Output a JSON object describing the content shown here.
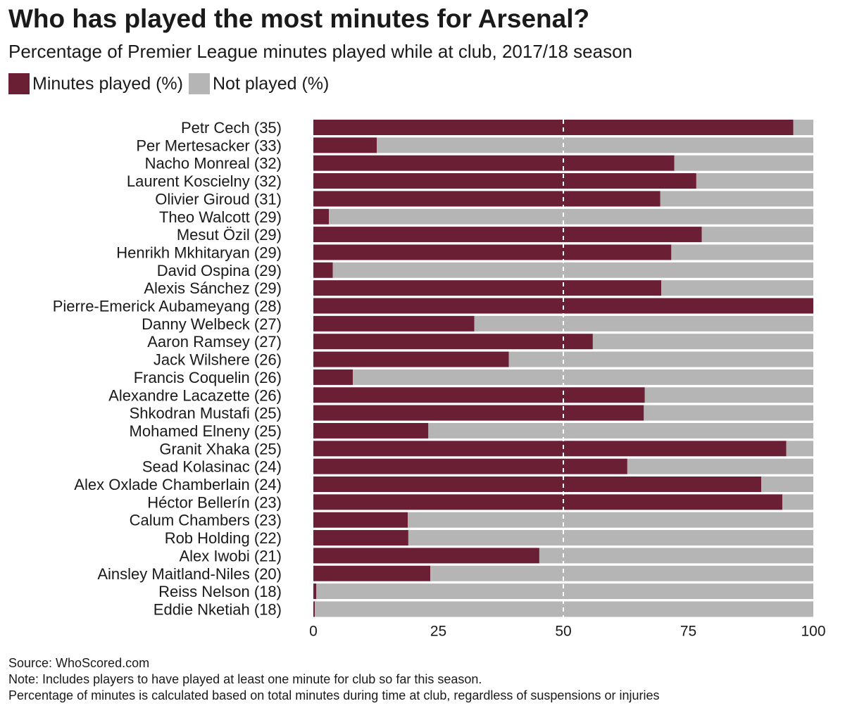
{
  "title": "Who has played the most minutes for Arsenal?",
  "subtitle": "Percentage of Premier League minutes played while at club, 2017/18 season",
  "colors": {
    "played": "#6b1f35",
    "not_played": "#b5b5b5",
    "reference_line": "#ffffff"
  },
  "legend": [
    {
      "label": "Minutes played (%)",
      "color": "#6b1f35"
    },
    {
      "label": "Not played (%)",
      "color": "#b5b5b5"
    }
  ],
  "chart_data": {
    "type": "bar",
    "orientation": "horizontal",
    "stacked": true,
    "title": "Who has played the most minutes for Arsenal?",
    "subtitle": "Percentage of Premier League minutes played while at club, 2017/18 season",
    "xlim": [
      0,
      100
    ],
    "x_ticks": [
      "0",
      "25",
      "50",
      "75",
      "100"
    ],
    "x_tick_values": [
      0,
      25,
      50,
      75,
      100
    ],
    "reference_line": 50,
    "categories": [
      "Petr Cech (35)",
      "Per Mertesacker (33)",
      "Nacho Monreal (32)",
      "Laurent Koscielny (32)",
      "Olivier Giroud (31)",
      "Theo Walcott (29)",
      "Mesut Özil (29)",
      "Henrikh Mkhitaryan (29)",
      "David Ospina (29)",
      "Alexis Sánchez (29)",
      "Pierre-Emerick Aubameyang (28)",
      "Danny Welbeck (27)",
      "Aaron Ramsey (27)",
      "Jack Wilshere (26)",
      "Francis Coquelin (26)",
      "Alexandre Lacazette (26)",
      "Shkodran Mustafi (25)",
      "Mohamed Elneny (25)",
      "Granit Xhaka (25)",
      "Sead Kolasinac (24)",
      "Alex Oxlade Chamberlain (24)",
      "Héctor Bellerín (23)",
      "Calum Chambers (23)",
      "Rob Holding (22)",
      "Alex Iwobi (21)",
      "Ainsley Maitland-Niles (20)",
      "Reiss Nelson (18)",
      "Eddie Nketiah (18)"
    ],
    "series": [
      {
        "name": "Minutes played (%)",
        "values": [
          96,
          12.7,
          72.2,
          76.6,
          69.4,
          3.1,
          77.7,
          71.6,
          3.9,
          69.6,
          100,
          32.2,
          55.9,
          39.1,
          7.9,
          66.3,
          66.1,
          23,
          94.6,
          62.8,
          89.6,
          93.8,
          18.9,
          19,
          45.2,
          23.4,
          0.6,
          0.3
        ]
      },
      {
        "name": "Not played (%)",
        "values": [
          4,
          87.3,
          27.8,
          23.4,
          30.6,
          96.9,
          22.3,
          28.4,
          96.1,
          30.4,
          0,
          67.8,
          44.1,
          60.9,
          92.1,
          33.7,
          33.9,
          77,
          5.4,
          37.2,
          10.4,
          6.2,
          81.1,
          81,
          54.8,
          76.6,
          99.4,
          99.7
        ]
      }
    ]
  },
  "notes": {
    "source": "Source: WhoScored.com",
    "note1": "Note: Includes players to have played at least one minute for club so far this season.",
    "note2": "Percentage of minutes is calculated based on total minutes during time at club, regardless of suspensions or injuries"
  }
}
